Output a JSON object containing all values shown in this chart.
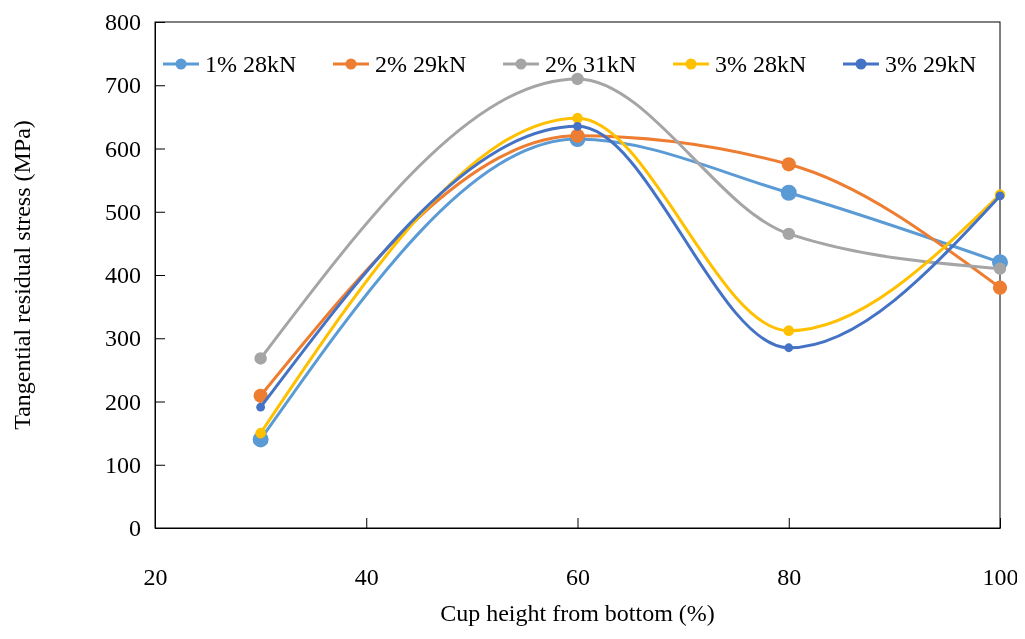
{
  "chart_data": {
    "type": "line",
    "xlabel": "Cup height from bottom (%)",
    "ylabel": "Tangential residual stress (MPa)",
    "x": [
      30,
      60,
      80,
      100
    ],
    "series": [
      {
        "name": "1% 28kN",
        "color": "#5b9bd5",
        "values": [
          140,
          615,
          530,
          420
        ]
      },
      {
        "name": "2% 29kN",
        "color": "#ed7d31",
        "values": [
          209,
          620,
          575,
          380
        ]
      },
      {
        "name": "2% 31kN",
        "color": "#a5a5a5",
        "values": [
          268,
          710,
          465,
          410
        ]
      },
      {
        "name": "3% 28kN",
        "color": "#ffc000",
        "values": [
          150,
          648,
          312,
          527
        ]
      },
      {
        "name": "3% 29kN",
        "color": "#4472c4",
        "values": [
          191,
          635,
          285,
          525
        ]
      }
    ],
    "xlim": [
      20,
      100
    ],
    "xticks": [
      20,
      40,
      60,
      80,
      100
    ],
    "ylim": [
      0,
      800
    ],
    "yticks": [
      0,
      100,
      200,
      300,
      400,
      500,
      600,
      700,
      800
    ],
    "marker": "circle",
    "legend": "top",
    "grid": false
  }
}
